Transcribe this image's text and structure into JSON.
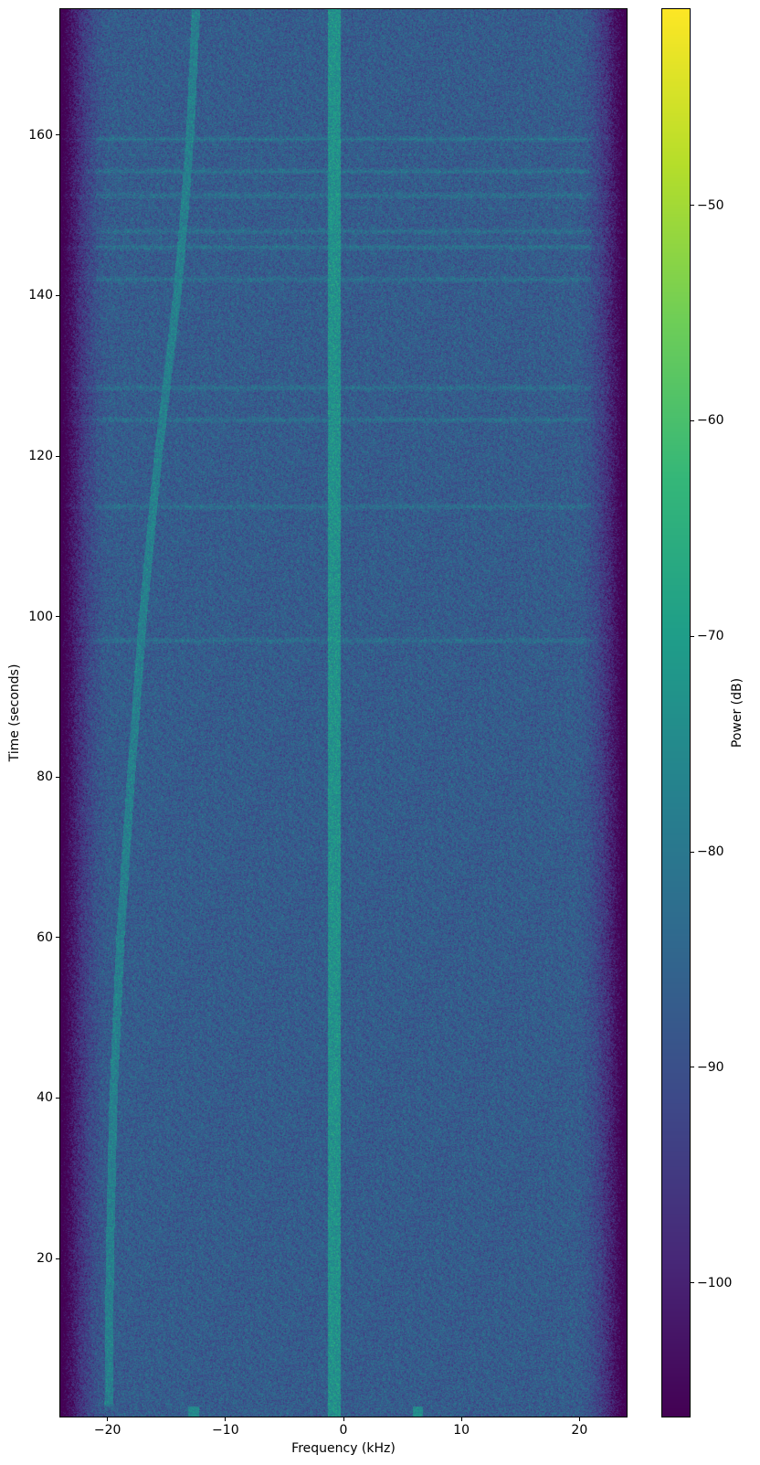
{
  "chart_data": {
    "type": "heatmap",
    "subtype": "spectrogram",
    "title": "",
    "xlabel": "Frequency (kHz)",
    "ylabel": "Time (seconds)",
    "xlim": [
      -24,
      24
    ],
    "ylim": [
      0.3,
      175.7
    ],
    "xticks": [
      -20,
      -10,
      0,
      10,
      20
    ],
    "xtick_labels": [
      "−20",
      "−10",
      "0",
      "10",
      "20"
    ],
    "yticks": [
      20,
      40,
      60,
      80,
      100,
      120,
      140,
      160
    ],
    "ytick_labels": [
      "20",
      "40",
      "60",
      "80",
      "100",
      "120",
      "140",
      "160"
    ],
    "grid": false,
    "colormap": "viridis",
    "colorbar": {
      "label": "Power (dB)",
      "range": [
        -106.2,
        -40.9
      ],
      "ticks": [
        -50,
        -60,
        -70,
        -80,
        -90,
        -100
      ],
      "tick_labels": [
        "−50",
        "−60",
        "−70",
        "−80",
        "−90",
        "−100"
      ]
    },
    "noise_floor_db": -87,
    "band_edge_rolloff_khz": [
      -21,
      21
    ],
    "features": {
      "carrier_line": {
        "freq_khz": -0.8,
        "power_db": -73
      },
      "drifting_tone": {
        "time_s": [
          1.5,
          20,
          40,
          60,
          80,
          100,
          120,
          130,
          140,
          150,
          160,
          175.7
        ],
        "freq_khz": [
          -19.9,
          -19.8,
          -19.5,
          -18.9,
          -18.0,
          -17.0,
          -15.7,
          -14.9,
          -14.1,
          -13.5,
          -13.0,
          -12.5
        ],
        "power_db": -78
      },
      "horizontal_bursts_s": [
        97,
        113.7,
        124.5,
        128.5,
        142,
        146,
        148,
        152.5,
        155.5,
        159.5
      ],
      "start_bursts": [
        {
          "freq_khz": -12.7,
          "time_s": [
            0.3,
            1.5
          ]
        },
        {
          "freq_khz": 6.3,
          "time_s": [
            0.3,
            1.5
          ]
        }
      ]
    }
  }
}
